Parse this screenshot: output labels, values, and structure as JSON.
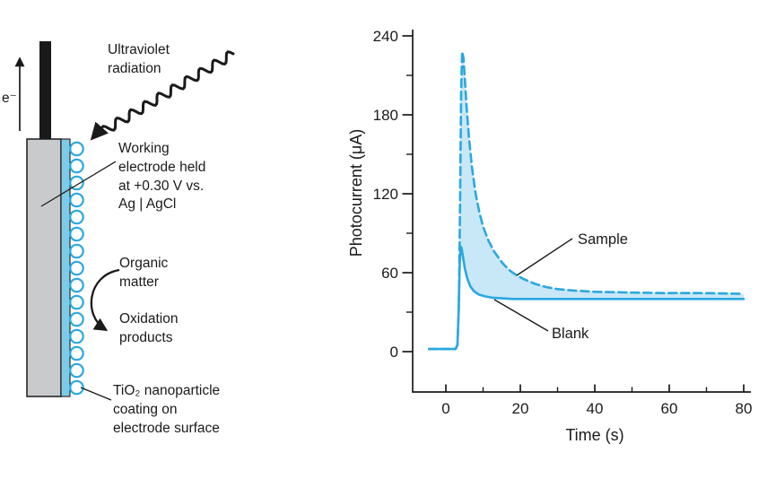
{
  "figure": {
    "background": "#ffffff",
    "accent_blue": "#29a8e0",
    "shade_blue": "#c8e7f7",
    "electrode_gray": "#c9cacc",
    "strip_blue": "#7ecbe9"
  },
  "diagram": {
    "electron_label": "e⁻",
    "uv_label": "Ultraviolet\nradiation",
    "working_electrode_label": "Working\nelectrode held\nat +0.30 V vs.\nAg | AgCl",
    "organic_label": "Organic\nmatter",
    "oxidation_label": "Oxidation\nproducts",
    "tio2_label": "TiO₂ nanoparticle\ncoating on\nelectrode surface"
  },
  "chart_data": {
    "type": "line",
    "title": "",
    "xlabel": "Time (s)",
    "ylabel": "Photocurrent (μA)",
    "xlim": [
      -6,
      82
    ],
    "ylim": [
      0,
      240
    ],
    "x_ticks": [
      0,
      20,
      40,
      60,
      80
    ],
    "x_minor_ticks": [
      10,
      30,
      50,
      70
    ],
    "y_ticks": [
      0,
      60,
      120,
      180,
      240
    ],
    "y_minor_ticks": [
      30,
      90,
      150,
      210
    ],
    "grid": false,
    "legend": "annotated-labels",
    "line_color": "#29a8e0",
    "fill_color": "#c8e7f7",
    "fill_between": [
      "Sample",
      "Blank"
    ],
    "series": [
      {
        "name": "Sample",
        "style": "dashed",
        "points": [
          [
            -4.5,
            2
          ],
          [
            2.6,
            2
          ],
          [
            3.1,
            5
          ],
          [
            3.5,
            35
          ],
          [
            3.8,
            110
          ],
          [
            4.1,
            195
          ],
          [
            4.35,
            228
          ],
          [
            4.7,
            224
          ],
          [
            5.1,
            207
          ],
          [
            5.6,
            185
          ],
          [
            6.2,
            163
          ],
          [
            7,
            140
          ],
          [
            8,
            120
          ],
          [
            9,
            106
          ],
          [
            10,
            95
          ],
          [
            11.5,
            84
          ],
          [
            13,
            76
          ],
          [
            15,
            68
          ],
          [
            17,
            62
          ],
          [
            19,
            58
          ],
          [
            21,
            55
          ],
          [
            24,
            51.5
          ],
          [
            27,
            49
          ],
          [
            30,
            47.5
          ],
          [
            34,
            46.5
          ],
          [
            40,
            45.5
          ],
          [
            48,
            45
          ],
          [
            58,
            44.5
          ],
          [
            68,
            44.5
          ],
          [
            80,
            44
          ]
        ]
      },
      {
        "name": "Blank",
        "style": "solid",
        "points": [
          [
            -4.5,
            2
          ],
          [
            2.6,
            2
          ],
          [
            3.1,
            5
          ],
          [
            3.4,
            28
          ],
          [
            3.7,
            65
          ],
          [
            3.95,
            80
          ],
          [
            4.2,
            79
          ],
          [
            4.6,
            72
          ],
          [
            5.1,
            63
          ],
          [
            5.7,
            56
          ],
          [
            6.5,
            50
          ],
          [
            7.5,
            46
          ],
          [
            8.8,
            43.5
          ],
          [
            10.5,
            42
          ],
          [
            12.5,
            41
          ],
          [
            15,
            40.5
          ],
          [
            18,
            40
          ],
          [
            25,
            40
          ],
          [
            35,
            40
          ],
          [
            50,
            40
          ],
          [
            65,
            40
          ],
          [
            80,
            40
          ]
        ]
      }
    ],
    "annotations": [
      {
        "text": "Sample",
        "label_x": 259,
        "label_y": 262,
        "line": [
          253,
          256,
          191,
          297
        ]
      },
      {
        "text": "Blank",
        "label_x": 230,
        "label_y": 367,
        "line": [
          226,
          359,
          166,
          324
        ]
      }
    ]
  }
}
